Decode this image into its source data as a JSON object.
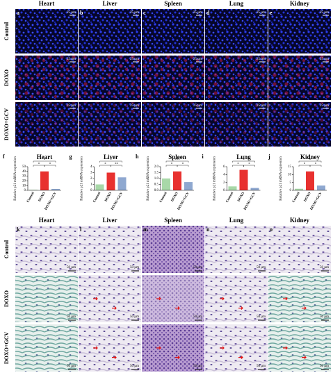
{
  "fluorescence": {
    "columns": [
      {
        "letter": "a",
        "tissue": "Heart"
      },
      {
        "letter": "b",
        "tissue": "Liver"
      },
      {
        "letter": "c",
        "tissue": "Spleen"
      },
      {
        "letter": "d",
        "tissue": "Lung"
      },
      {
        "letter": "e",
        "tissue": "Kidney"
      }
    ],
    "rows": [
      "Control",
      "DOXO",
      "DOXO+GCV"
    ],
    "scale_bar": "25 µm"
  },
  "chart_data": [
    {
      "type": "bar",
      "letter": "f",
      "title": "Heart",
      "y_label": "Relative p21 mRNA expression",
      "categories": [
        "Control",
        "DOXO",
        "DOXO+GCV"
      ],
      "values": [
        1,
        40,
        3
      ],
      "colors": [
        "#a8d8a8",
        "#e8312f",
        "#8fa8d0"
      ],
      "ylim": [
        0,
        50
      ],
      "yticks": [
        0,
        10,
        20,
        30,
        40,
        50
      ],
      "significance": [
        "*",
        "*",
        "*"
      ]
    },
    {
      "type": "bar",
      "letter": "g",
      "title": "Liver",
      "y_label": "Relative p21 mRNA expression",
      "categories": [
        "Control",
        "DOXO",
        "DOXO+GCV"
      ],
      "values": [
        1,
        3,
        2.2
      ],
      "colors": [
        "#a8d8a8",
        "#e8312f",
        "#8fa8d0"
      ],
      "ylim": [
        0,
        4
      ],
      "yticks": [
        0,
        1,
        2,
        3,
        4
      ],
      "significance": [
        "*",
        "*",
        "**"
      ]
    },
    {
      "type": "bar",
      "letter": "h",
      "title": "Spleen",
      "y_label": "Relative p21 mRNA expression",
      "categories": [
        "Control",
        "DOXO",
        "DOXO+GCV"
      ],
      "values": [
        1,
        1.6,
        0.7
      ],
      "colors": [
        "#a8d8a8",
        "#e8312f",
        "#8fa8d0"
      ],
      "ylim": [
        0,
        2
      ],
      "yticks": [
        {
          "value": 0,
          "label": "0.0"
        },
        {
          "value": 0.5,
          "label": "0.5"
        },
        {
          "value": 1,
          "label": "1.0"
        },
        {
          "value": 1.5,
          "label": "1.5"
        },
        {
          "value": 2,
          "label": "2.0"
        }
      ],
      "significance": [
        "***",
        "*",
        "*"
      ]
    },
    {
      "type": "bar",
      "letter": "i",
      "title": "Lung",
      "y_label": "Relative p21 mRNA expression",
      "categories": [
        "Control",
        "DOXO",
        "DOXO+GCV"
      ],
      "values": [
        1,
        5.2,
        0.6
      ],
      "colors": [
        "#a8d8a8",
        "#e8312f",
        "#8fa8d0"
      ],
      "ylim": [
        0,
        6
      ],
      "yticks": [
        0,
        2,
        4,
        6
      ],
      "significance": [
        "*",
        "*",
        "*"
      ]
    },
    {
      "type": "bar",
      "letter": "j",
      "title": "Kidney",
      "y_label": "Relative p21 mRNA expression",
      "categories": [
        "Control",
        "DOXO",
        "DOXO+GCV"
      ],
      "values": [
        1,
        12,
        3
      ],
      "colors": [
        "#a8d8a8",
        "#e8312f",
        "#8fa8d0"
      ],
      "ylim": [
        0,
        15
      ],
      "yticks": [
        0,
        5,
        10,
        15
      ],
      "significance": [
        "*",
        "*",
        "*"
      ]
    }
  ],
  "histology": {
    "columns": [
      {
        "letter": "k",
        "tissue": "Heart"
      },
      {
        "letter": "l",
        "tissue": "Liver"
      },
      {
        "letter": "m",
        "tissue": "Spleen"
      },
      {
        "letter": "n",
        "tissue": "Lung"
      },
      {
        "letter": "o",
        "tissue": "Kidney"
      }
    ],
    "rows": [
      "Control",
      "DOXO",
      "DOXO+GCV"
    ],
    "scale_bar": "50 µm"
  }
}
